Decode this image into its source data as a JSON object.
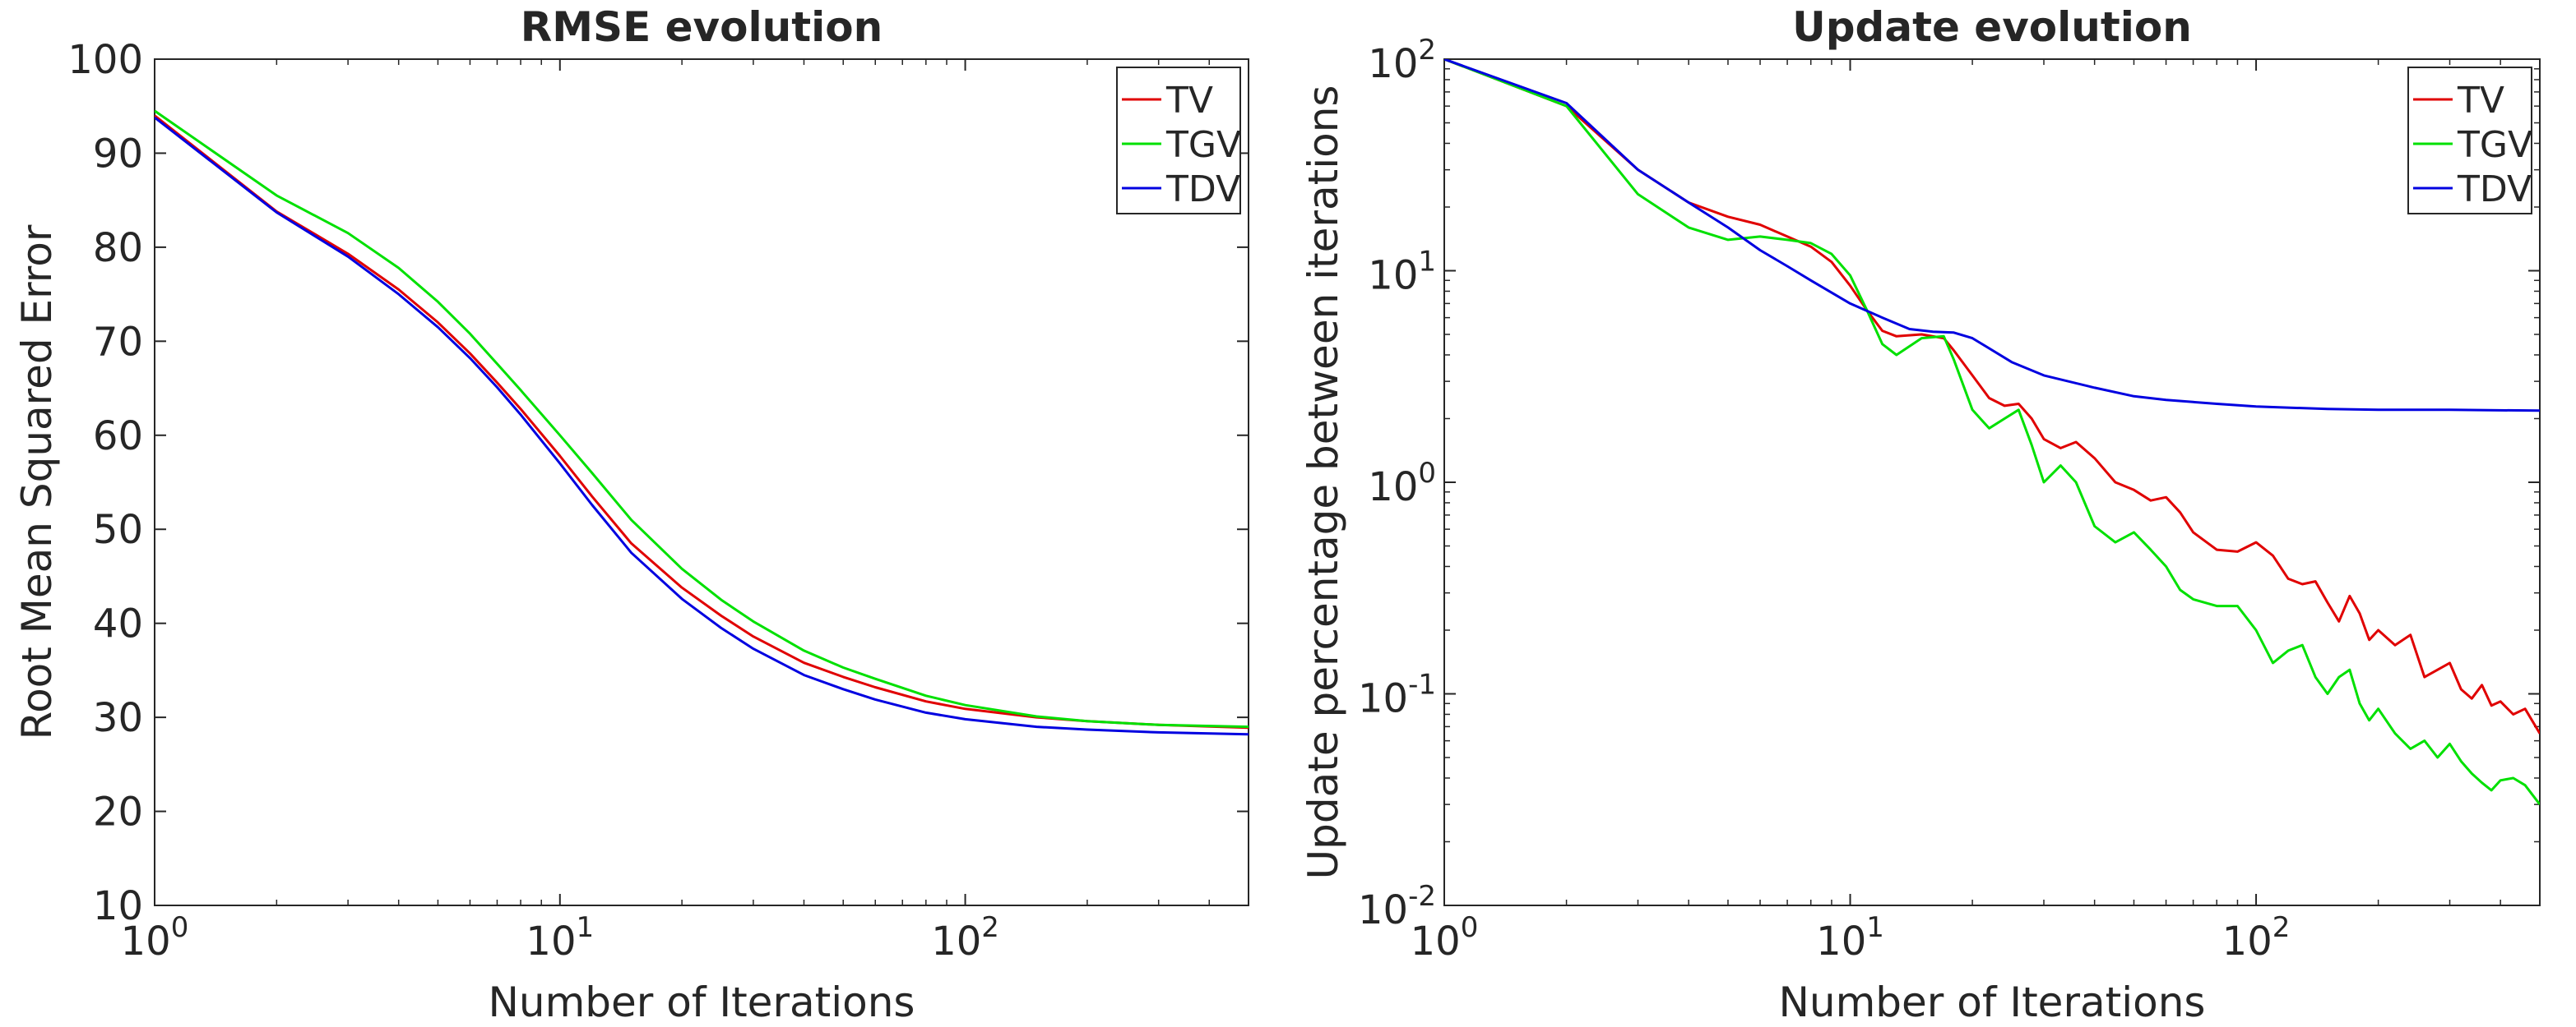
{
  "colors": {
    "TV": "#e00000",
    "TGV": "#00e000",
    "TDV": "#0000e0",
    "axis": "#262626"
  },
  "chart_data": [
    {
      "type": "line",
      "title": "RMSE evolution",
      "xlabel": "Number of Iterations",
      "ylabel": "Root Mean Squared Error",
      "xscale": "log",
      "yscale": "linear",
      "xlim": [
        1,
        500
      ],
      "ylim": [
        10,
        100
      ],
      "xticks": [
        {
          "value": 1,
          "base": "10",
          "exp": "0"
        },
        {
          "value": 10,
          "base": "10",
          "exp": "1"
        },
        {
          "value": 100,
          "base": "10",
          "exp": "2"
        }
      ],
      "yticks": [
        {
          "value": 10,
          "label": "10"
        },
        {
          "value": 20,
          "label": "20"
        },
        {
          "value": 30,
          "label": "30"
        },
        {
          "value": 40,
          "label": "40"
        },
        {
          "value": 50,
          "label": "50"
        },
        {
          "value": 60,
          "label": "60"
        },
        {
          "value": 70,
          "label": "70"
        },
        {
          "value": 80,
          "label": "80"
        },
        {
          "value": 90,
          "label": "90"
        },
        {
          "value": 100,
          "label": "100"
        }
      ],
      "legend_position": "top-right",
      "series": [
        {
          "name": "TV",
          "x": [
            1,
            2,
            3,
            4,
            5,
            6,
            7,
            8,
            10,
            12,
            15,
            20,
            25,
            30,
            40,
            50,
            60,
            80,
            100,
            150,
            200,
            300,
            500
          ],
          "y": [
            94,
            83.8,
            79.3,
            75.5,
            72,
            68.7,
            65.6,
            62.8,
            57.8,
            53.5,
            48.5,
            43.8,
            40.8,
            38.6,
            35.8,
            34.3,
            33.2,
            31.7,
            30.9,
            30.0,
            29.6,
            29.2,
            28.9
          ]
        },
        {
          "name": "TGV",
          "x": [
            1,
            2,
            3,
            4,
            5,
            6,
            7,
            8,
            10,
            12,
            15,
            20,
            25,
            30,
            40,
            50,
            60,
            80,
            100,
            150,
            200,
            300,
            500
          ],
          "y": [
            94.5,
            85.5,
            81.5,
            77.8,
            74.2,
            70.8,
            67.6,
            64.8,
            60,
            56,
            51,
            45.8,
            42.5,
            40.2,
            37.1,
            35.3,
            34.1,
            32.3,
            31.3,
            30.1,
            29.6,
            29.2,
            29.0
          ]
        },
        {
          "name": "TDV",
          "x": [
            1,
            2,
            3,
            4,
            5,
            6,
            7,
            8,
            10,
            12,
            15,
            20,
            25,
            30,
            40,
            50,
            60,
            80,
            100,
            150,
            200,
            300,
            500
          ],
          "y": [
            93.8,
            83.7,
            79.0,
            75.0,
            71.5,
            68.2,
            65.1,
            62.2,
            57.0,
            52.6,
            47.5,
            42.6,
            39.5,
            37.3,
            34.5,
            33.0,
            31.9,
            30.5,
            29.8,
            29.0,
            28.7,
            28.4,
            28.2
          ]
        }
      ]
    },
    {
      "type": "line",
      "title": "Update evolution",
      "xlabel": "Number of Iterations",
      "ylabel": "Update percentage between iterations",
      "xscale": "log",
      "yscale": "log",
      "xlim": [
        1,
        500
      ],
      "ylim": [
        0.01,
        100
      ],
      "xticks": [
        {
          "value": 1,
          "base": "10",
          "exp": "0"
        },
        {
          "value": 10,
          "base": "10",
          "exp": "1"
        },
        {
          "value": 100,
          "base": "10",
          "exp": "2"
        }
      ],
      "yticks": [
        {
          "value": 0.01,
          "base": "10",
          "exp": "-2"
        },
        {
          "value": 0.1,
          "base": "10",
          "exp": "-1"
        },
        {
          "value": 1,
          "base": "10",
          "exp": "0"
        },
        {
          "value": 10,
          "base": "10",
          "exp": "1"
        },
        {
          "value": 100,
          "base": "10",
          "exp": "2"
        }
      ],
      "legend_position": "top-right",
      "series": [
        {
          "name": "TV",
          "x": [
            1,
            2,
            3,
            4,
            5,
            6,
            7,
            8,
            9,
            10,
            11,
            12,
            13,
            15,
            17,
            18,
            20,
            22,
            24,
            26,
            28,
            30,
            33,
            36,
            40,
            45,
            50,
            55,
            60,
            65,
            70,
            80,
            90,
            100,
            110,
            120,
            130,
            140,
            150,
            160,
            170,
            180,
            190,
            200,
            220,
            240,
            260,
            280,
            300,
            320,
            340,
            360,
            380,
            400,
            430,
            460,
            500
          ],
          "y": [
            100,
            60,
            30,
            21,
            18,
            16.5,
            14.5,
            13,
            11,
            8.5,
            6.5,
            5.2,
            4.9,
            5.0,
            4.8,
            4.2,
            3.2,
            2.5,
            2.3,
            2.35,
            2.0,
            1.6,
            1.45,
            1.55,
            1.3,
            1.0,
            0.92,
            0.82,
            0.85,
            0.72,
            0.58,
            0.48,
            0.47,
            0.52,
            0.45,
            0.35,
            0.33,
            0.34,
            0.27,
            0.22,
            0.29,
            0.24,
            0.18,
            0.2,
            0.17,
            0.19,
            0.12,
            0.13,
            0.14,
            0.105,
            0.095,
            0.11,
            0.088,
            0.092,
            0.08,
            0.085,
            0.065
          ]
        },
        {
          "name": "TGV",
          "x": [
            1,
            2,
            3,
            4,
            5,
            6,
            7,
            8,
            9,
            10,
            11,
            12,
            13,
            15,
            17,
            18,
            20,
            22,
            24,
            26,
            28,
            30,
            33,
            36,
            40,
            45,
            50,
            55,
            60,
            65,
            70,
            80,
            90,
            100,
            110,
            120,
            130,
            140,
            150,
            160,
            170,
            180,
            190,
            200,
            220,
            240,
            260,
            280,
            300,
            320,
            340,
            360,
            380,
            400,
            430,
            460,
            500
          ],
          "y": [
            100,
            60,
            23,
            16,
            14,
            14.5,
            14,
            13.5,
            12,
            9.5,
            6.5,
            4.5,
            4.0,
            4.8,
            4.9,
            3.8,
            2.2,
            1.8,
            2.0,
            2.2,
            1.5,
            1.0,
            1.2,
            1.0,
            0.62,
            0.52,
            0.58,
            0.48,
            0.4,
            0.31,
            0.28,
            0.26,
            0.26,
            0.2,
            0.14,
            0.16,
            0.17,
            0.12,
            0.1,
            0.12,
            0.13,
            0.09,
            0.075,
            0.085,
            0.065,
            0.055,
            0.06,
            0.05,
            0.058,
            0.048,
            0.042,
            0.038,
            0.035,
            0.039,
            0.04,
            0.037,
            0.03
          ]
        },
        {
          "name": "TDV",
          "x": [
            1,
            2,
            3,
            4,
            5,
            6,
            7,
            8,
            10,
            12,
            14,
            16,
            18,
            20,
            25,
            30,
            40,
            50,
            60,
            80,
            100,
            150,
            200,
            300,
            500
          ],
          "y": [
            100,
            62,
            30,
            21,
            16,
            12.5,
            10.5,
            9.0,
            7.0,
            6.0,
            5.3,
            5.15,
            5.1,
            4.8,
            3.7,
            3.2,
            2.8,
            2.55,
            2.45,
            2.35,
            2.28,
            2.22,
            2.2,
            2.2,
            2.18
          ]
        }
      ]
    }
  ]
}
